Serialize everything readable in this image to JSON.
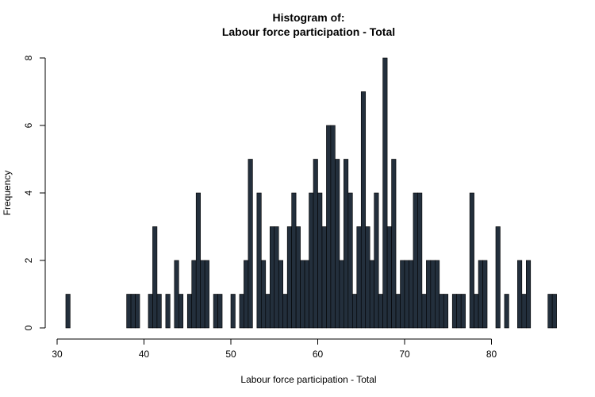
{
  "chart_data": {
    "type": "bar",
    "title": [
      "Histogram of:",
      "Labour force participation - Total"
    ],
    "xlabel": "Labour force participation - Total",
    "ylabel": "Frequency",
    "xlim": [
      30,
      87.5
    ],
    "ylim": [
      0,
      8
    ],
    "x_ticks": [
      30,
      40,
      50,
      60,
      70,
      80
    ],
    "y_ticks": [
      0,
      2,
      4,
      6,
      8
    ],
    "bin_start": 31,
    "bin_width": 0.5,
    "values": [
      1,
      0,
      0,
      0,
      0,
      0,
      0,
      0,
      0,
      0,
      0,
      0,
      0,
      0,
      1,
      1,
      1,
      0,
      0,
      1,
      3,
      1,
      0,
      1,
      0,
      2,
      1,
      0,
      1,
      2,
      4,
      2,
      2,
      0,
      1,
      1,
      0,
      0,
      1,
      0,
      1,
      2,
      5,
      0,
      4,
      2,
      1,
      3,
      3,
      2,
      1,
      3,
      4,
      3,
      2,
      2,
      4,
      5,
      4,
      3,
      6,
      6,
      5,
      2,
      5,
      4,
      1,
      3,
      7,
      3,
      2,
      4,
      1,
      8,
      3,
      5,
      1,
      2,
      2,
      2,
      4,
      4,
      1,
      2,
      2,
      2,
      1,
      1,
      0,
      1,
      1,
      1,
      0,
      4,
      1,
      2,
      2,
      0,
      0,
      3,
      0,
      1,
      0,
      0,
      2,
      1,
      2,
      0,
      0,
      0,
      0,
      1,
      1
    ],
    "bar_color": "#232f3c"
  }
}
